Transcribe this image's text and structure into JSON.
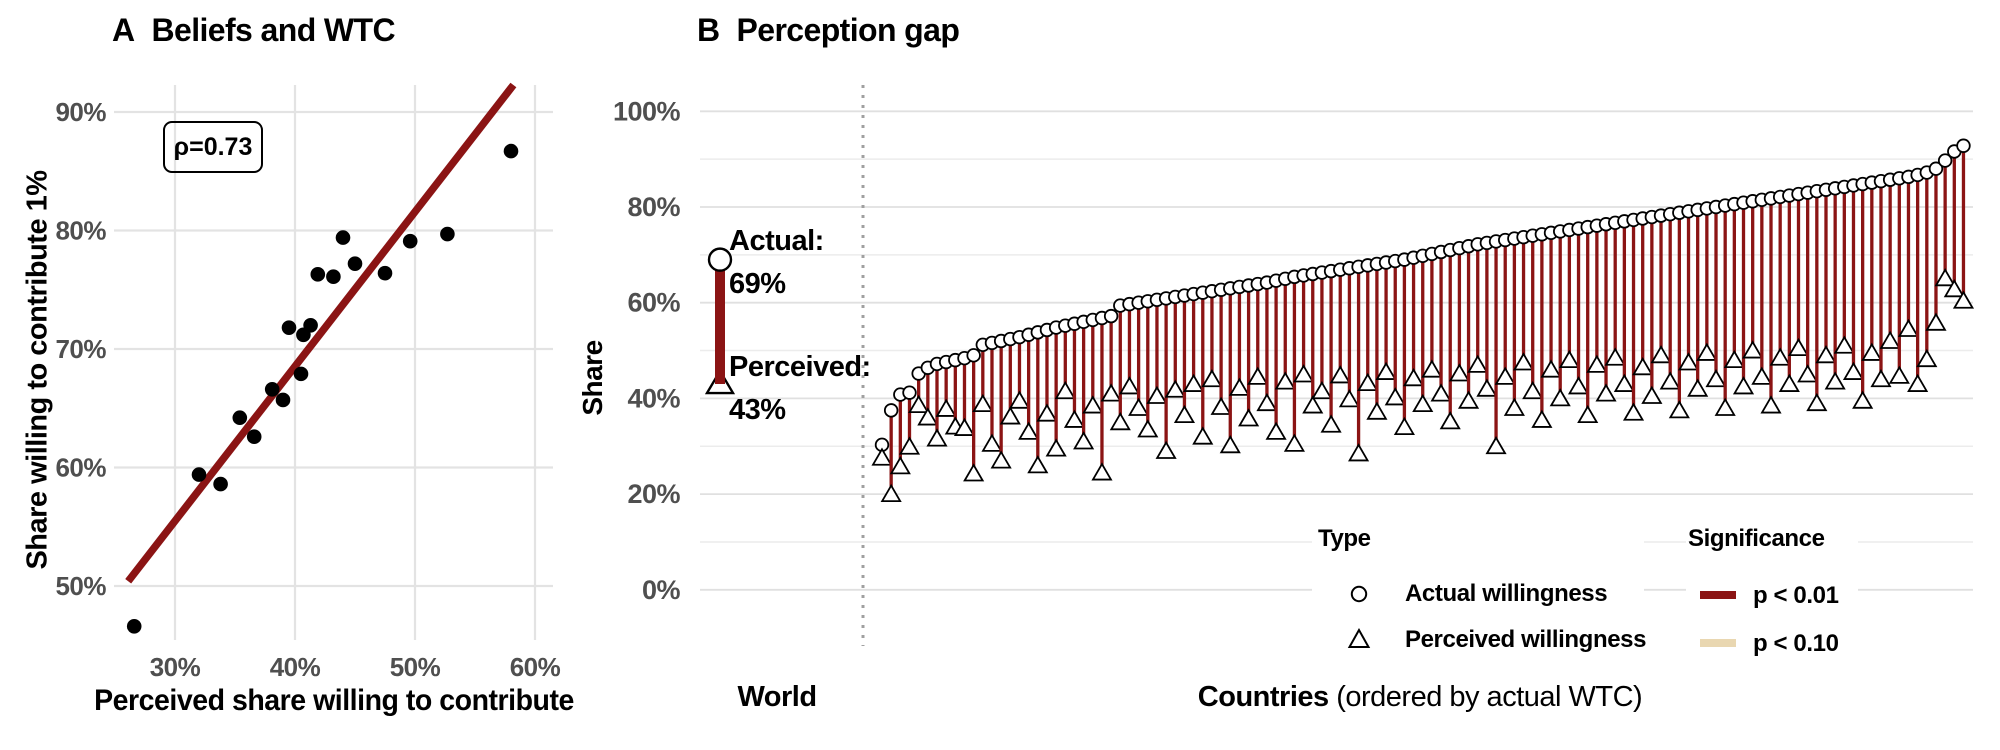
{
  "chart_data": [
    {
      "type": "scatter",
      "panel": "A",
      "tag": "A",
      "title": "Beliefs and WTC",
      "annotation": "ρ=0.73",
      "xlabel": "Perceived share willing to contribute",
      "ylabel": "Share willing to contribute 1%",
      "xlim": [
        24.9,
        61.5
      ],
      "ylim": [
        45.4,
        92.3
      ],
      "xticks": [
        30,
        40,
        50,
        60
      ],
      "xtick_labels": [
        "30%",
        "40%",
        "50%",
        "60%"
      ],
      "yticks": [
        50,
        60,
        70,
        80,
        90
      ],
      "ytick_labels": [
        "50%",
        "60%",
        "70%",
        "80%",
        "90%"
      ],
      "grid": true,
      "point_color": "#000000",
      "fit_line": {
        "color": "#8b1414",
        "x1": 26.1,
        "y1": 50.4,
        "x2": 58.6,
        "y2": 92.8
      },
      "points": [
        [
          26.6,
          46.6
        ],
        [
          32,
          59.4
        ],
        [
          33.8,
          58.6
        ],
        [
          35.4,
          64.2
        ],
        [
          36.6,
          62.6
        ],
        [
          38.1,
          66.6
        ],
        [
          39,
          65.7
        ],
        [
          40.5,
          67.9
        ],
        [
          39.5,
          71.8
        ],
        [
          40.7,
          71.2
        ],
        [
          41.3,
          72
        ],
        [
          41.9,
          76.3
        ],
        [
          43.2,
          76.1
        ],
        [
          45,
          77.2
        ],
        [
          47.5,
          76.4
        ],
        [
          44,
          79.4
        ],
        [
          49.6,
          79.1
        ],
        [
          52.7,
          79.7
        ],
        [
          58,
          86.7
        ]
      ]
    },
    {
      "type": "dumbbell",
      "panel": "B",
      "tag": "B",
      "title": "Perception gap",
      "ylabel": "Share",
      "ylim": [
        0,
        100
      ],
      "yticks": [
        0,
        20,
        40,
        60,
        80,
        100
      ],
      "ytick_labels": [
        "0%",
        "20%",
        "40%",
        "60%",
        "80%",
        "100%"
      ],
      "gridline_step": 10,
      "world": {
        "label": "World",
        "actual": 69,
        "perceived": 43,
        "actual_label": "Actual:",
        "actual_text": "69%",
        "perceived_label": "Perceived:",
        "perceived_text": "43%"
      },
      "xlabel_bold": "Countries",
      "xlabel_rest": " (ordered by actual WTC)",
      "legend": {
        "type_title": "Type",
        "actual": "Actual willingness",
        "perceived": "Perceived willingness",
        "sig_title": "Significance",
        "p01": "p < 0.01",
        "p10": "p < 0.10"
      },
      "colors": {
        "p01": "#8b1414",
        "p10": "#e9d7b1",
        "grid": "#ececec",
        "grid_major": "#e0e0e0",
        "tick": "#4f4f4f",
        "dotted": "#a0a0a0",
        "marker_fill": "#ffffff",
        "marker_stroke": "#000000"
      },
      "countries": {
        "order_note": "ordered by actual WTC",
        "actual": [
          30.3,
          37.5,
          40.8,
          41.2,
          45.2,
          46.4,
          47.2,
          47.6,
          48.0,
          48.4,
          49.0,
          51.2,
          51.6,
          52.0,
          52.4,
          52.8,
          53.3,
          53.8,
          54.3,
          54.8,
          55.2,
          55.6,
          56.0,
          56.4,
          56.8,
          57.2,
          59.4,
          59.7,
          60.0,
          60.3,
          60.6,
          60.9,
          61.2,
          61.5,
          61.8,
          62.1,
          62.4,
          62.7,
          63.0,
          63.3,
          63.6,
          63.9,
          64.2,
          64.6,
          65.0,
          65.4,
          65.7,
          66.0,
          66.3,
          66.6,
          66.9,
          67.2,
          67.5,
          67.8,
          68.1,
          68.4,
          68.7,
          69.0,
          69.4,
          69.8,
          70.2,
          70.6,
          71.0,
          71.4,
          71.8,
          72.2,
          72.5,
          72.8,
          73.1,
          73.4,
          73.7,
          74.0,
          74.3,
          74.6,
          74.9,
          75.2,
          75.5,
          75.8,
          76.1,
          76.4,
          76.7,
          77.0,
          77.3,
          77.6,
          77.9,
          78.2,
          78.5,
          78.8,
          79.1,
          79.4,
          79.7,
          80.0,
          80.3,
          80.6,
          80.9,
          81.2,
          81.5,
          81.8,
          82.1,
          82.4,
          82.7,
          83.0,
          83.3,
          83.6,
          83.9,
          84.2,
          84.5,
          84.8,
          85.1,
          85.4,
          85.7,
          86.0,
          86.3,
          86.7,
          87.2,
          88.0,
          89.7,
          91.6,
          92.8
        ],
        "perceived": [
          27.6,
          20.0,
          25.8,
          29.9,
          38.6,
          36.0,
          31.6,
          37.8,
          34.1,
          33.8,
          24.3,
          38.8,
          30.5,
          27.0,
          36.2,
          39.5,
          33.0,
          26.0,
          36.8,
          29.5,
          41.5,
          35.5,
          31.0,
          38.5,
          24.5,
          41.0,
          35.0,
          42.5,
          38.0,
          33.5,
          40.5,
          29.0,
          41.8,
          36.5,
          43.0,
          32.0,
          44.0,
          38.2,
          30.2,
          42.2,
          35.8,
          44.5,
          39.0,
          33.0,
          43.5,
          30.5,
          45.0,
          38.5,
          41.5,
          34.5,
          44.8,
          39.8,
          28.5,
          43.2,
          37.2,
          45.5,
          40.2,
          34.0,
          44.2,
          38.8,
          46.0,
          41.0,
          35.2,
          45.2,
          39.5,
          47.0,
          42.0,
          30.0,
          44.5,
          38.0,
          47.5,
          41.5,
          35.5,
          46.0,
          40.0,
          48.0,
          42.5,
          36.5,
          47.0,
          41.0,
          48.5,
          43.0,
          37.0,
          46.5,
          40.5,
          49.0,
          43.5,
          37.5,
          47.5,
          42.0,
          49.5,
          44.0,
          38.0,
          48.0,
          42.5,
          50.0,
          44.5,
          38.5,
          48.5,
          43.0,
          50.5,
          45.0,
          39.0,
          49.0,
          43.5,
          51.0,
          45.5,
          39.5,
          49.5,
          44.0,
          52.0,
          44.7,
          54.5,
          43.0,
          48.2,
          55.8,
          65.1,
          62.8,
          60.4
        ],
        "significance_default": "p<0.01",
        "significance_exceptions": {
          "0": "p<0.10"
        }
      }
    }
  ]
}
